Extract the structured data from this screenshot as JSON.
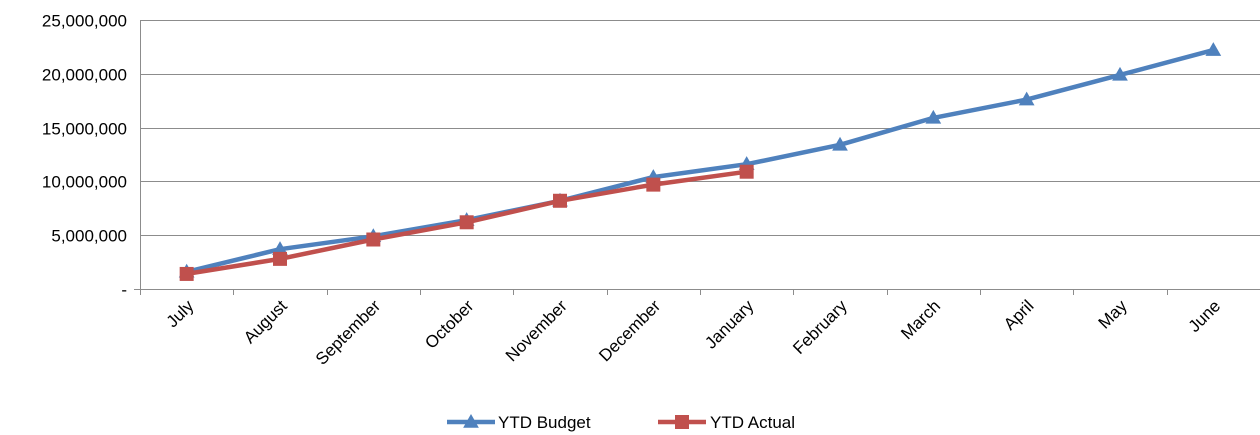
{
  "chart_data": {
    "type": "line",
    "categories": [
      "July",
      "August",
      "September",
      "October",
      "November",
      "December",
      "January",
      "February",
      "March",
      "April",
      "May",
      "June"
    ],
    "y_ticks": [
      {
        "value": 0,
        "label": "-"
      },
      {
        "value": 5000000,
        "label": "5,000,000"
      },
      {
        "value": 10000000,
        "label": "10,000,000"
      },
      {
        "value": 15000000,
        "label": "15,000,000"
      },
      {
        "value": 20000000,
        "label": "20,000,000"
      },
      {
        "value": 25000000,
        "label": "25,000,000"
      }
    ],
    "ylim": [
      0,
      25000000
    ],
    "grid": true,
    "legend_position": "bottom",
    "series": [
      {
        "name": "YTD Budget",
        "color": "#4f81bd",
        "marker": "triangle",
        "values": [
          1600000,
          3700000,
          4900000,
          6400000,
          8200000,
          10400000,
          11600000,
          13400000,
          15900000,
          17600000,
          19900000,
          22200000
        ]
      },
      {
        "name": "YTD Actual",
        "color": "#c0504d",
        "marker": "square",
        "values": [
          1400000,
          2800000,
          4600000,
          6200000,
          8200000,
          9700000,
          10900000,
          null,
          null,
          null,
          null,
          null
        ]
      }
    ]
  }
}
